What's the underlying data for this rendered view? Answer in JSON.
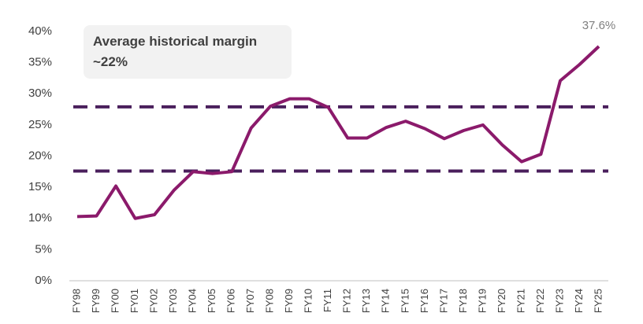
{
  "chart_data": {
    "type": "line",
    "annotation": "Average historical margin ~22%",
    "categories": [
      "FY98",
      "FY99",
      "FY00",
      "FY01",
      "FY02",
      "FY03",
      "FY04",
      "FY05",
      "FY06",
      "FY07",
      "FY08",
      "FY09",
      "FY10",
      "FY11",
      "FY12",
      "FY13",
      "FY14",
      "FY15",
      "FY16",
      "FY17",
      "FY18",
      "FY19",
      "FY20",
      "FY21",
      "FY22",
      "FY23",
      "FY24",
      "FY25"
    ],
    "values": [
      10.3,
      10.4,
      15.2,
      10.0,
      10.6,
      14.5,
      17.5,
      17.2,
      17.5,
      24.5,
      28.0,
      29.2,
      29.2,
      27.8,
      22.9,
      22.9,
      24.6,
      25.6,
      24.4,
      22.8,
      24.1,
      25.0,
      21.8,
      19.1,
      20.3,
      32.1,
      34.7,
      37.6
    ],
    "value_labels": [
      null,
      null,
      null,
      null,
      null,
      null,
      null,
      null,
      null,
      null,
      null,
      null,
      null,
      null,
      null,
      null,
      null,
      null,
      null,
      null,
      null,
      null,
      null,
      null,
      null,
      null,
      null,
      "37.6%"
    ],
    "color": "#8b1a6b",
    "reference_lines": [
      27.9,
      17.6
    ],
    "reference_color": "#4a1f5c",
    "ylim": [
      0,
      40
    ],
    "yticks": [
      {
        "value": 0,
        "label": "0%"
      },
      {
        "value": 5,
        "label": "5%"
      },
      {
        "value": 10,
        "label": "10%"
      },
      {
        "value": 15,
        "label": "15%"
      },
      {
        "value": 20,
        "label": "20%"
      },
      {
        "value": 25,
        "label": "25%"
      },
      {
        "value": 30,
        "label": "30%"
      },
      {
        "value": 35,
        "label": "35%"
      },
      {
        "value": 40,
        "label": "40%"
      }
    ]
  }
}
